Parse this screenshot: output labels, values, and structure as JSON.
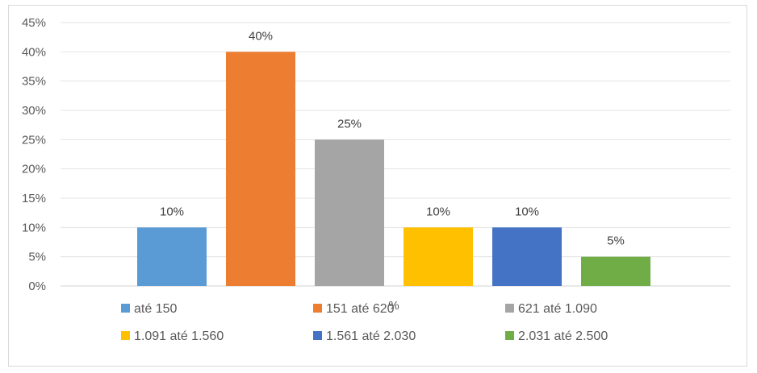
{
  "chart_data": {
    "type": "bar",
    "x_axis_label": "%",
    "y_ticks": [
      "0%",
      "5%",
      "10%",
      "15%",
      "20%",
      "25%",
      "30%",
      "35%",
      "40%",
      "45%"
    ],
    "ylim": [
      0,
      45
    ],
    "grid": true,
    "legend_placement": "bottom",
    "series": [
      {
        "name": "até 150",
        "value": 10,
        "label": "10%",
        "color": "#5b9bd5"
      },
      {
        "name": "151 até 620",
        "value": 40,
        "label": "40%",
        "color": "#ed7d31"
      },
      {
        "name": "621 até 1.090",
        "value": 25,
        "label": "25%",
        "color": "#a5a5a5"
      },
      {
        "name": "1.091 até 1.560",
        "value": 10,
        "label": "10%",
        "color": "#ffc000"
      },
      {
        "name": "1.561 até 2.030",
        "value": 10,
        "label": "10%",
        "color": "#4472c4"
      },
      {
        "name": "2.031 até 2.500",
        "value": 5,
        "label": "5%",
        "color": "#70ad47"
      }
    ]
  }
}
